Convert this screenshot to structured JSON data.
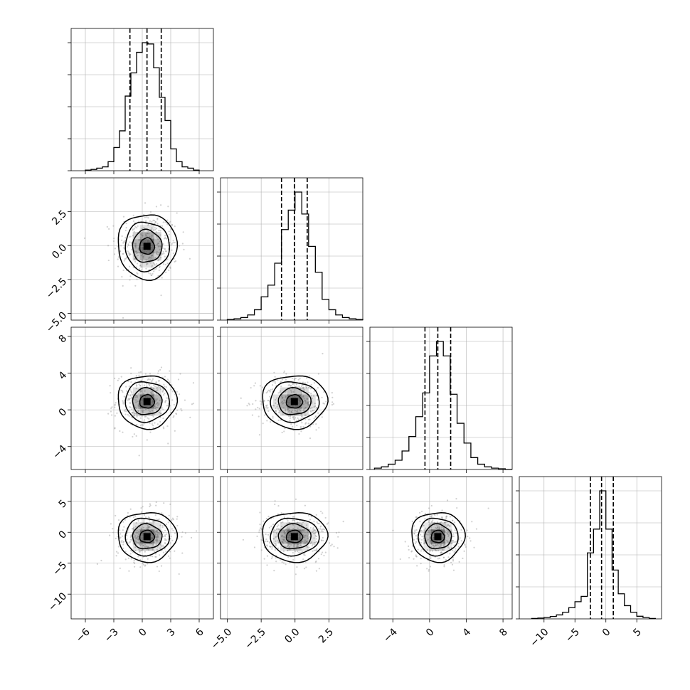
{
  "chart_data": {
    "type": "corner",
    "n_params": 4,
    "params": [
      {
        "index": 0,
        "range": [
          -7.5,
          7.5
        ],
        "ticks": [
          -6,
          -3,
          0,
          3,
          6
        ],
        "tick_labels": [
          "−6",
          "−3",
          "0",
          "3",
          "6"
        ],
        "quantiles": [
          -1.3,
          0.5,
          2.0
        ],
        "hist": {
          "bin_edges": [
            -6.0,
            -5.4,
            -4.8,
            -4.2,
            -3.6,
            -3.0,
            -2.4,
            -1.8,
            -1.2,
            -0.6,
            0.0,
            0.6,
            1.2,
            1.8,
            2.4,
            3.0,
            3.6,
            4.2,
            4.8,
            5.4,
            6.0
          ],
          "counts": [
            0.005,
            0.01,
            0.02,
            0.03,
            0.07,
            0.18,
            0.31,
            0.58,
            0.76,
            0.92,
            0.995,
            0.985,
            0.8,
            0.57,
            0.39,
            0.17,
            0.07,
            0.03,
            0.02,
            0.005
          ]
        }
      },
      {
        "index": 1,
        "range": [
          -5.5,
          5.0
        ],
        "ticks": [
          -5.0,
          -2.5,
          0.0,
          2.5
        ],
        "tick_labels": [
          "−5.0",
          "−2.5",
          "0.0",
          "2.5"
        ],
        "quantiles": [
          -1.0,
          -0.05,
          0.9
        ],
        "hist": {
          "bin_edges": [
            -5.0,
            -4.5,
            -4.0,
            -3.5,
            -3.0,
            -2.5,
            -2.0,
            -1.5,
            -1.0,
            -0.5,
            0.0,
            0.5,
            1.0,
            1.5,
            2.0,
            2.5,
            3.0,
            3.5,
            4.0,
            4.5,
            5.0
          ],
          "counts": [
            0.005,
            0.01,
            0.02,
            0.04,
            0.08,
            0.18,
            0.27,
            0.44,
            0.7,
            0.85,
            0.99,
            0.82,
            0.57,
            0.37,
            0.16,
            0.08,
            0.04,
            0.02,
            0.01,
            0.005
          ]
        }
      },
      {
        "index": 2,
        "range": [
          -6.5,
          9.0
        ],
        "ticks": [
          -4,
          0,
          4,
          8
        ],
        "tick_labels": [
          "−4",
          "0",
          "4",
          "8"
        ],
        "quantiles": [
          -0.5,
          0.9,
          2.3
        ],
        "hist": {
          "bin_edges": [
            -6.0,
            -5.25,
            -4.5,
            -3.75,
            -3.0,
            -2.25,
            -1.5,
            -0.75,
            0.0,
            0.75,
            1.5,
            2.25,
            3.0,
            3.75,
            4.5,
            5.25,
            6.0,
            6.75,
            7.5,
            8.25,
            9.0
          ],
          "counts": [
            0.01,
            0.02,
            0.04,
            0.07,
            0.14,
            0.25,
            0.4,
            0.58,
            0.86,
            0.97,
            0.86,
            0.57,
            0.35,
            0.2,
            0.09,
            0.04,
            0.02,
            0.01,
            0.005,
            0.0
          ]
        }
      },
      {
        "index": 3,
        "range": [
          -14.0,
          9.0
        ],
        "ticks": [
          -10,
          -5,
          0,
          5
        ],
        "tick_labels": [
          "−10",
          "−5",
          "0",
          "5"
        ],
        "quantiles": [
          -2.5,
          -0.7,
          1.2
        ],
        "hist": {
          "bin_edges": [
            -12.0,
            -11.0,
            -10.0,
            -9.0,
            -8.0,
            -7.0,
            -6.0,
            -5.0,
            -4.0,
            -3.0,
            -2.0,
            -1.0,
            0.0,
            1.0,
            2.0,
            3.0,
            4.0,
            5.0,
            6.0,
            7.0,
            8.0
          ],
          "counts": [
            0.003,
            0.006,
            0.01,
            0.018,
            0.03,
            0.05,
            0.085,
            0.13,
            0.17,
            0.5,
            0.68,
            0.97,
            0.68,
            0.37,
            0.19,
            0.1,
            0.05,
            0.02,
            0.01,
            0.003
          ]
        }
      }
    ],
    "pairs": [
      {
        "row": 1,
        "col": 0,
        "mean": [
          0.5,
          -0.05
        ],
        "sd": [
          1.55,
          1.2
        ],
        "contour_sigma": [
          0.5,
          1.0,
          1.5,
          2.0
        ],
        "n_points": 400
      },
      {
        "row": 2,
        "col": 0,
        "mean": [
          0.5,
          0.9
        ],
        "sd": [
          1.55,
          1.45
        ],
        "contour_sigma": [
          0.5,
          1.0,
          1.5,
          2.0
        ],
        "n_points": 400
      },
      {
        "row": 2,
        "col": 1,
        "mean": [
          -0.05,
          0.9
        ],
        "sd": [
          1.2,
          1.45
        ],
        "contour_sigma": [
          0.5,
          1.0,
          1.5,
          2.0
        ],
        "n_points": 400
      },
      {
        "row": 3,
        "col": 0,
        "mean": [
          0.5,
          -0.7
        ],
        "sd": [
          1.55,
          2.0
        ],
        "contour_sigma": [
          0.5,
          1.0,
          1.5,
          2.0
        ],
        "n_points": 400
      },
      {
        "row": 3,
        "col": 1,
        "mean": [
          -0.05,
          -0.7
        ],
        "sd": [
          1.2,
          2.0
        ],
        "contour_sigma": [
          0.5,
          1.0,
          1.5,
          2.0
        ],
        "n_points": 400
      },
      {
        "row": 3,
        "col": 2,
        "mean": [
          0.9,
          -0.7
        ],
        "sd": [
          1.45,
          2.0
        ],
        "contour_sigma": [
          0.5,
          1.0,
          1.5,
          2.0
        ],
        "n_points": 400
      }
    ],
    "grid": true,
    "histogram_color": "#000000",
    "contour_color": "#000000",
    "scatter_color": "#9a9a9a",
    "density_shade_color": "#3a3a3a",
    "grid_color": "#b0b0b0"
  }
}
